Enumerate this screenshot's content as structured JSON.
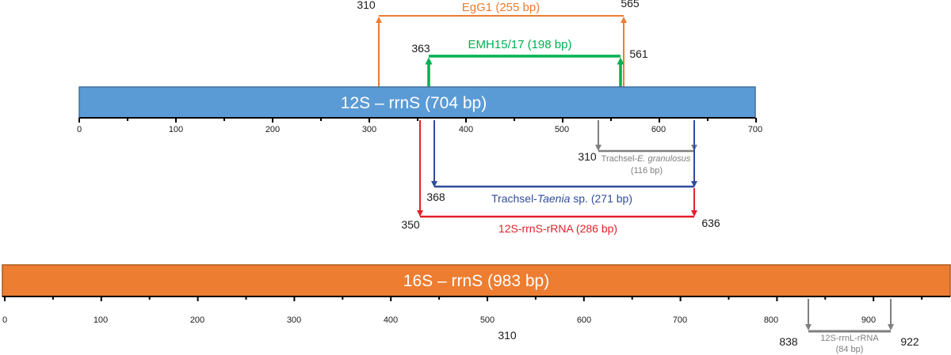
{
  "genes": [
    {
      "id": "12s",
      "label": "12S – rrnS (704 bp)",
      "fill": "#5B9BD5",
      "stroke": "#41719C",
      "ticks": [
        "0",
        "100",
        "200",
        "300",
        "400",
        "500",
        "600",
        "700"
      ]
    },
    {
      "id": "16s",
      "label": "16S – rrnS (983 bp)",
      "fill": "#ED7D31",
      "stroke": "#AE5A21",
      "ticks": [
        "0",
        "100",
        "200",
        "300",
        "400",
        "500",
        "600",
        "700",
        "800",
        "900"
      ]
    }
  ],
  "amplicons": [
    {
      "id": "egg1",
      "label": "EgG1 (255 bp)",
      "start": "310",
      "end": "565",
      "color": "#ED7D31"
    },
    {
      "id": "emh",
      "label": "EMH15/17 (198 bp)",
      "start": "363",
      "end": "561",
      "color": "#00B050"
    },
    {
      "id": "trachsel-eg",
      "label_main": "Trachsel-",
      "label_italic": "E. granulosus",
      "label_size": "(116 bp)",
      "start": "310",
      "color": "#7F7F7F"
    },
    {
      "id": "trachsel-taenia",
      "label_main": "Trachsel-",
      "label_italic": "Taenia",
      "label_suffix": " sp. (271 bp)",
      "start": "368",
      "color": "#2F4D9E"
    },
    {
      "id": "rrns-rrna",
      "label": "12S-rrnS-rRNA (286 bp)",
      "start": "350",
      "end": "636",
      "color": "#E3202A"
    },
    {
      "id": "rrnl-rrna",
      "label": "12S-rrnL-rRNA",
      "label_size": "(84 bp)",
      "start": "838",
      "end": "922",
      "color": "#7F7F7F"
    }
  ],
  "stray_labels": {
    "below_16s_axis": "310"
  }
}
